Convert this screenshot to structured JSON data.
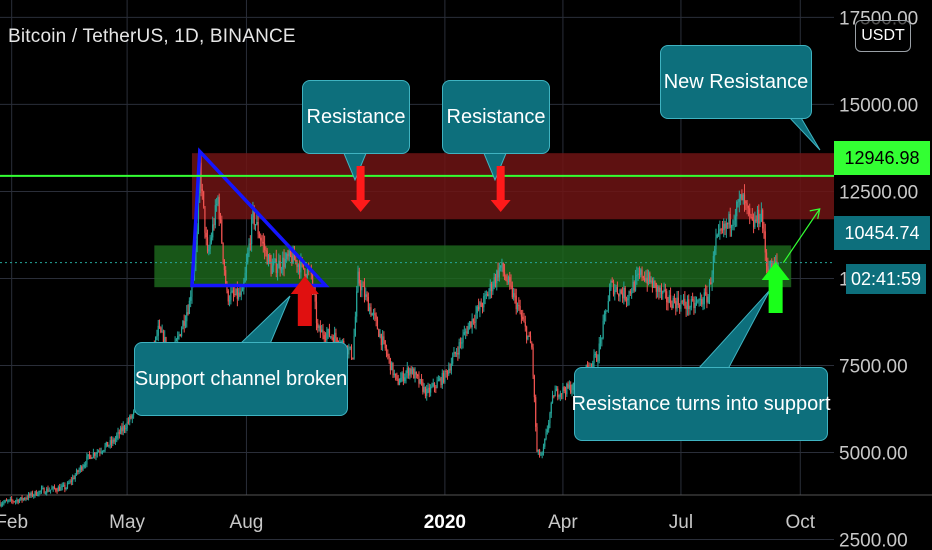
{
  "title": "Bitcoin / TetherUS, 1D, BINANCE",
  "symbol_button": "USDT",
  "chart_data": {
    "type": "candlestick",
    "title": "Bitcoin / TetherUS, 1D, BINANCE",
    "x_ticks": [
      {
        "label": "Feb",
        "date": "2019-02-01",
        "bold": false
      },
      {
        "label": "May",
        "date": "2019-05-01",
        "bold": false
      },
      {
        "label": "Aug",
        "date": "2019-08-01",
        "bold": false
      },
      {
        "label": "2020",
        "date": "2020-01-01",
        "bold": true
      },
      {
        "label": "Apr",
        "date": "2020-04-01",
        "bold": false
      },
      {
        "label": "Jul",
        "date": "2020-07-01",
        "bold": false
      },
      {
        "label": "Oct",
        "date": "2020-10-01",
        "bold": false
      }
    ],
    "y_ticks": [
      {
        "value": 2500,
        "label": "2500.00"
      },
      {
        "value": 5000,
        "label": "5000.00"
      },
      {
        "value": 7500,
        "label": "7500.00"
      },
      {
        "value": 10000,
        "label": "10000.00"
      },
      {
        "value": 12500,
        "label": "12500.00"
      },
      {
        "value": 15000,
        "label": "15000.00"
      },
      {
        "value": 17500,
        "label": "17500.00"
      }
    ],
    "ylim": [
      2200,
      18000
    ],
    "xlim": [
      "2019-01-23",
      "2020-10-27"
    ],
    "price_path": [
      [
        "2019-01-23",
        3550
      ],
      [
        "2019-02-08",
        3650
      ],
      [
        "2019-02-24",
        3900
      ],
      [
        "2019-03-15",
        4000
      ],
      [
        "2019-04-02",
        4900
      ],
      [
        "2019-04-20",
        5300
      ],
      [
        "2019-05-10",
        6300
      ],
      [
        "2019-05-25",
        8500
      ],
      [
        "2019-06-05",
        7800
      ],
      [
        "2019-06-18",
        9300
      ],
      [
        "2019-06-24",
        11200
      ],
      [
        "2019-06-26",
        13200
      ],
      [
        "2019-07-02",
        10600
      ],
      [
        "2019-07-10",
        12300
      ],
      [
        "2019-07-17",
        9500
      ],
      [
        "2019-07-29",
        9500
      ],
      [
        "2019-08-06",
        11800
      ],
      [
        "2019-08-20",
        10300
      ],
      [
        "2019-09-05",
        10600
      ],
      [
        "2019-09-20",
        10100
      ],
      [
        "2019-09-25",
        8500
      ],
      [
        "2019-10-10",
        8300
      ],
      [
        "2019-10-22",
        7800
      ],
      [
        "2019-10-26",
        10000
      ],
      [
        "2019-11-08",
        8800
      ],
      [
        "2019-11-25",
        7000
      ],
      [
        "2019-12-05",
        7400
      ],
      [
        "2019-12-18",
        6700
      ],
      [
        "2020-01-01",
        7200
      ],
      [
        "2020-01-20",
        8700
      ],
      [
        "2020-02-01",
        9400
      ],
      [
        "2020-02-13",
        10350
      ],
      [
        "2020-02-25",
        9300
      ],
      [
        "2020-03-08",
        8000
      ],
      [
        "2020-03-12",
        5000
      ],
      [
        "2020-03-16",
        4900
      ],
      [
        "2020-03-25",
        6700
      ],
      [
        "2020-04-10",
        6900
      ],
      [
        "2020-04-28",
        7800
      ],
      [
        "2020-05-08",
        9800
      ],
      [
        "2020-05-20",
        9500
      ],
      [
        "2020-06-01",
        10150
      ],
      [
        "2020-06-20",
        9400
      ],
      [
        "2020-07-10",
        9200
      ],
      [
        "2020-07-22",
        9500
      ],
      [
        "2020-07-28",
        11000
      ],
      [
        "2020-08-10",
        11800
      ],
      [
        "2020-08-17",
        12300
      ],
      [
        "2020-08-25",
        11500
      ],
      [
        "2020-09-01",
        11900
      ],
      [
        "2020-09-05",
        10400
      ],
      [
        "2020-09-10",
        10300
      ],
      [
        "2020-09-14",
        10454.74
      ]
    ],
    "overlays": {
      "resistance_zone": {
        "low": 11700,
        "high": 13600,
        "from": "2019-06-20",
        "to": "2020-10-27",
        "color": "#6e1414"
      },
      "support_zone": {
        "low": 9750,
        "high": 10950,
        "from": "2019-05-22",
        "to": "2020-09-24",
        "color": "#1e6b1e"
      },
      "resistance_line": {
        "value": 12946.98,
        "color": "#33ff33"
      },
      "current_price_line": {
        "value": 10454.74
      },
      "triangle": [
        [
          "2019-06-26",
          13650
        ],
        [
          "2019-10-01",
          9800
        ],
        [
          "2019-06-20",
          9800
        ]
      ]
    },
    "price_labels": [
      {
        "value": 12946.98,
        "label": "12946.98",
        "bg": "#33ff33",
        "fg": "#000000"
      },
      {
        "value": 10454.74,
        "label": "10454.74",
        "bg": "#0d6f7c",
        "fg": "#ffffff"
      },
      {
        "value": 9570,
        "label": "02:41:59",
        "bg": "#0d6f7c",
        "fg": "#ffffff"
      }
    ],
    "annotations": [
      {
        "text": "Resistance",
        "date": "2019-10-28",
        "price": 14200
      },
      {
        "text": "Resistance",
        "date": "2020-02-13",
        "price": 14200
      },
      {
        "text": "New Resistance",
        "date": "2020-08-20",
        "price": 15800
      },
      {
        "text": "Support channel broken",
        "date": "2019-07-15",
        "price": 5850
      },
      {
        "text": "Resistance turns into support",
        "date": "2020-07-26",
        "price": 4850
      }
    ],
    "legend": "none",
    "grid": true
  }
}
